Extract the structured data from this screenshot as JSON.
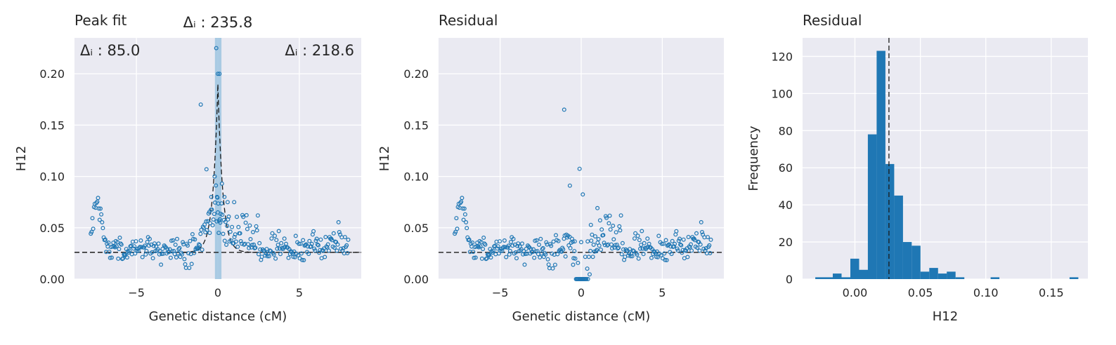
{
  "chart_data": [
    {
      "type": "scatter",
      "title": "Peak fit",
      "center_annotation": "Δᵢ : 235.8",
      "left_annotation": "Δᵢ : 85.0",
      "right_annotation": "Δᵢ : 218.6",
      "xlabel": "Genetic distance (cM)",
      "ylabel": "H12",
      "xlim": [
        -8.8,
        8.8
      ],
      "ylim": [
        0.0,
        0.235
      ],
      "xticks": [
        -5,
        0,
        5
      ],
      "xtick_labels": [
        "−5",
        "0",
        "5"
      ],
      "yticks": [
        0.0,
        0.05,
        0.1,
        0.15,
        0.2
      ],
      "ytick_labels": [
        "0.00",
        "0.05",
        "0.10",
        "0.15",
        "0.20"
      ],
      "grid": true,
      "baseline": 0.026,
      "peak_band": [
        -0.18,
        0.22
      ],
      "peak_fit": {
        "center": 0.0,
        "height": 0.19,
        "scale": 0.3
      },
      "colors": {
        "points": "#1f77b4",
        "band": "#9ec4e0",
        "fit": "#1a1a1a",
        "background": "#eaeaf2"
      }
    },
    {
      "type": "scatter",
      "title": "Residual",
      "xlabel": "Genetic distance (cM)",
      "ylabel": "H12",
      "xlim": [
        -8.8,
        8.8
      ],
      "ylim": [
        0.0,
        0.235
      ],
      "xticks": [
        -5,
        0,
        5
      ],
      "xtick_labels": [
        "−5",
        "0",
        "5"
      ],
      "yticks": [
        0.0,
        0.05,
        0.1,
        0.15,
        0.2
      ],
      "ytick_labels": [
        "0.00",
        "0.05",
        "0.10",
        "0.15",
        "0.20"
      ],
      "grid": true,
      "baseline": 0.026,
      "colors": {
        "points": "#1f77b4",
        "background": "#eaeaf2"
      }
    },
    {
      "type": "bar",
      "title": "Residual",
      "xlabel": "H12",
      "ylabel": "Frequency",
      "xlim": [
        -0.04,
        0.178
      ],
      "ylim": [
        0,
        130
      ],
      "xticks": [
        0.0,
        0.05,
        0.1,
        0.15
      ],
      "xtick_labels": [
        "0.00",
        "0.05",
        "0.10",
        "0.15"
      ],
      "yticks": [
        0,
        20,
        40,
        60,
        80,
        100,
        120
      ],
      "ytick_labels": [
        "0",
        "20",
        "40",
        "60",
        "80",
        "100",
        "120"
      ],
      "grid": true,
      "mean_line": 0.026,
      "bin_width": 0.0067,
      "bins": [
        {
          "x0": -0.0303,
          "value": 1
        },
        {
          "x0": -0.0236,
          "value": 1
        },
        {
          "x0": -0.0169,
          "value": 3
        },
        {
          "x0": -0.0102,
          "value": 1
        },
        {
          "x0": -0.0035,
          "value": 11
        },
        {
          "x0": 0.0032,
          "value": 5
        },
        {
          "x0": 0.0099,
          "value": 78
        },
        {
          "x0": 0.0166,
          "value": 123
        },
        {
          "x0": 0.0233,
          "value": 62
        },
        {
          "x0": 0.03,
          "value": 45
        },
        {
          "x0": 0.0367,
          "value": 20
        },
        {
          "x0": 0.0434,
          "value": 18
        },
        {
          "x0": 0.0501,
          "value": 4
        },
        {
          "x0": 0.0568,
          "value": 6
        },
        {
          "x0": 0.0635,
          "value": 3
        },
        {
          "x0": 0.0702,
          "value": 4
        },
        {
          "x0": 0.0769,
          "value": 1
        },
        {
          "x0": 0.1037,
          "value": 1
        },
        {
          "x0": 0.164,
          "value": 1
        }
      ],
      "colors": {
        "bars": "#1f77b4",
        "background": "#eaeaf2"
      }
    }
  ]
}
